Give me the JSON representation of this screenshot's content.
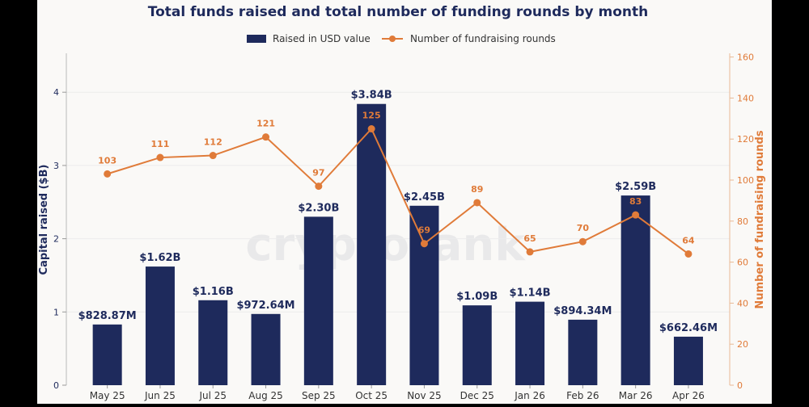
{
  "chart_data": {
    "type": "bar+line",
    "title": "Total funds raised and total number of funding rounds by month",
    "watermark": "cryptorank",
    "categories": [
      "May 25",
      "Jun 25",
      "Jul 25",
      "Aug 25",
      "Sep 25",
      "Oct 25",
      "Nov 25",
      "Dec 25",
      "Jan 26",
      "Feb 26",
      "Mar 26",
      "Apr 26"
    ],
    "y_left": {
      "label": "Capital raised ($B)",
      "lim": [
        0,
        4.5
      ],
      "ticks": [
        "0",
        "1",
        "2",
        "3",
        "4"
      ]
    },
    "y_right": {
      "label": "Number of fundraising rounds",
      "lim": [
        0,
        160
      ],
      "ticks": [
        "0",
        "20",
        "40",
        "60",
        "80",
        "100",
        "120",
        "140",
        "160"
      ]
    },
    "legend": {
      "placement": "top-center",
      "entries": [
        "Raised in USD value",
        "Number of fundraising rounds"
      ]
    },
    "grid": true,
    "series": [
      {
        "name": "Raised in USD value",
        "type": "bar",
        "axis": "left",
        "color": "#1e2a5c",
        "values": [
          0.82887,
          1.62,
          1.16,
          0.97264,
          2.3,
          3.84,
          2.45,
          1.09,
          1.14,
          0.89434,
          2.59,
          0.66246
        ],
        "labels": [
          "$828.87M",
          "$1.62B",
          "$1.16B",
          "$972.64M",
          "$2.30B",
          "$3.84B",
          "$2.45B",
          "$1.09B",
          "$1.14B",
          "$894.34M",
          "$2.59B",
          "$662.46M"
        ]
      },
      {
        "name": "Number of fundraising rounds",
        "type": "line",
        "axis": "right",
        "color": "#e07b39",
        "values": [
          103,
          111,
          112,
          121,
          97,
          125,
          69,
          89,
          65,
          70,
          83,
          64
        ],
        "labels": [
          "103",
          "111",
          "112",
          "121",
          "97",
          "125",
          "69",
          "89",
          "65",
          "70",
          "83",
          "64"
        ]
      }
    ]
  }
}
